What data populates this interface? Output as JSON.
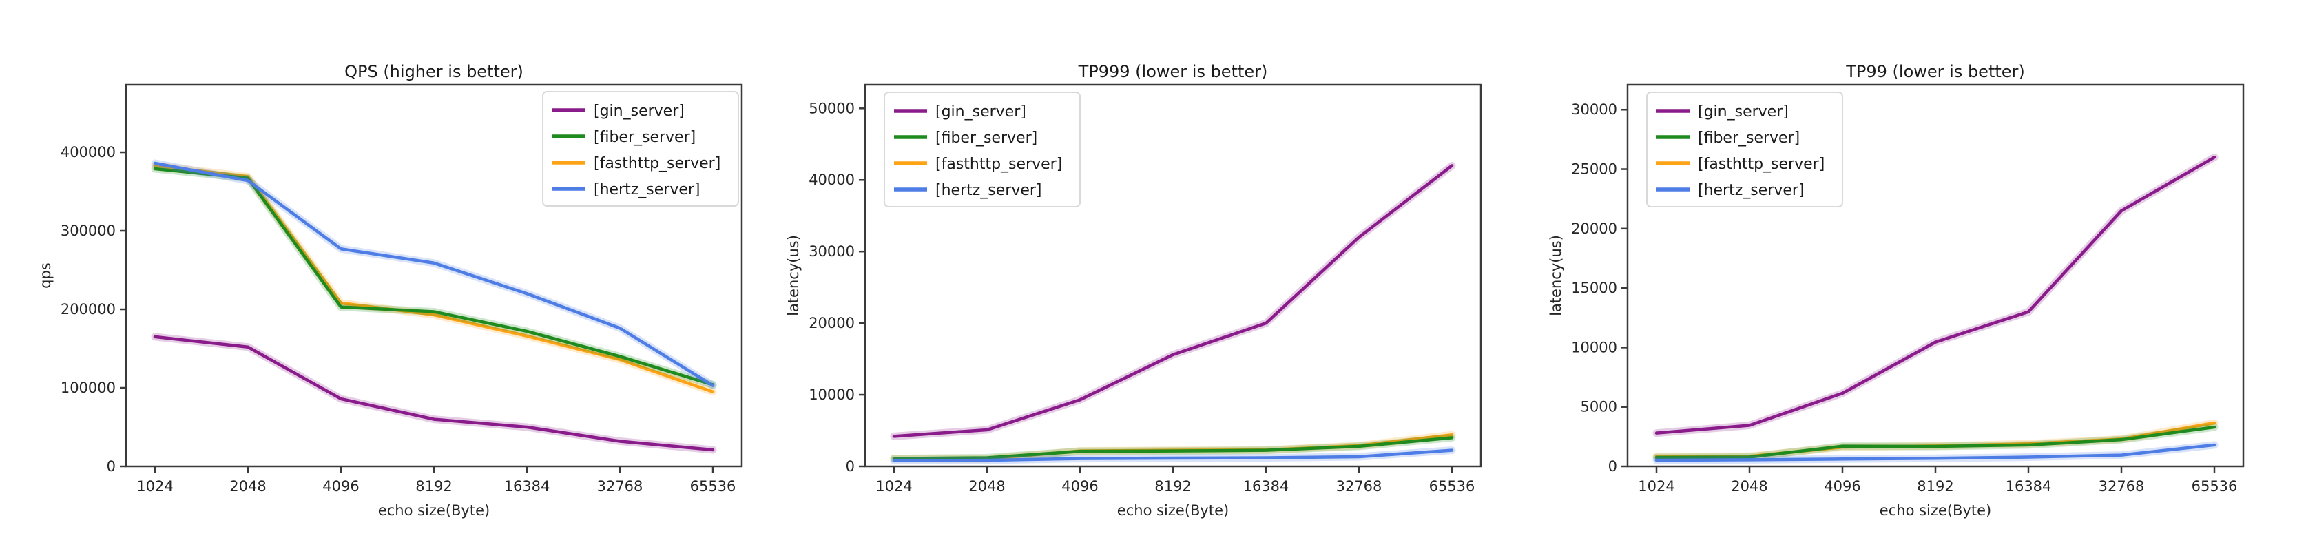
{
  "figure": {
    "background": "#ffffff",
    "text_color": "#1a1a1a",
    "spine_color": "#3a3a3a",
    "legend_border": "#d9d9d9",
    "legend_fill": "#ffffff"
  },
  "chart_data": [
    {
      "type": "line",
      "title": "QPS (higher is better)",
      "xlabel": "echo size(Byte)",
      "ylabel": "qps",
      "legend_position": "top-right",
      "grid": false,
      "categories": [
        "1024",
        "2048",
        "4096",
        "8192",
        "16384",
        "32768",
        "65536"
      ],
      "yticks": [
        0,
        100000,
        200000,
        300000,
        400000
      ],
      "ytick_labels": [
        "0",
        "100000",
        "200000",
        "300000",
        "400000"
      ],
      "ylim": [
        0,
        486000
      ],
      "series": [
        {
          "name": "[gin_server]",
          "color": "#8a1b8a",
          "values": [
            165000,
            152000,
            86000,
            60000,
            50000,
            32000,
            21000
          ]
        },
        {
          "name": "[fiber_server]",
          "color": "#1f8b1f",
          "values": [
            379000,
            367000,
            203000,
            197000,
            172000,
            140000,
            104000
          ]
        },
        {
          "name": "[fasthttp_server]",
          "color": "#ffa316",
          "values": [
            383000,
            369000,
            208000,
            193000,
            166000,
            136000,
            95000
          ]
        },
        {
          "name": "[hertz_server]",
          "color": "#4d7de5",
          "values": [
            386000,
            364000,
            277000,
            259000,
            220000,
            176000,
            103000
          ]
        }
      ]
    },
    {
      "type": "line",
      "title": "TP999 (lower is better)",
      "xlabel": "echo size(Byte)",
      "ylabel": "latency(us)",
      "legend_position": "top-left",
      "grid": false,
      "categories": [
        "1024",
        "2048",
        "4096",
        "8192",
        "16384",
        "32768",
        "65536"
      ],
      "yticks": [
        0,
        10000,
        20000,
        30000,
        40000,
        50000
      ],
      "ytick_labels": [
        "0",
        "10000",
        "20000",
        "30000",
        "40000",
        "50000"
      ],
      "ylim": [
        0,
        53300
      ],
      "series": [
        {
          "name": "[gin_server]",
          "color": "#8a1b8a",
          "values": [
            4200,
            5100,
            9300,
            15600,
            20000,
            32000,
            42000
          ]
        },
        {
          "name": "[fiber_server]",
          "color": "#1f8b1f",
          "values": [
            1100,
            1200,
            2100,
            2150,
            2250,
            2800,
            4000
          ]
        },
        {
          "name": "[fasthttp_server]",
          "color": "#ffa316",
          "values": [
            1100,
            1050,
            2150,
            2250,
            2300,
            2900,
            4400
          ]
        },
        {
          "name": "[hertz_server]",
          "color": "#4d7de5",
          "values": [
            800,
            850,
            1100,
            1150,
            1200,
            1350,
            2250
          ]
        }
      ]
    },
    {
      "type": "line",
      "title": "TP99 (lower is better)",
      "xlabel": "echo size(Byte)",
      "ylabel": "latency(us)",
      "legend_position": "top-left",
      "grid": false,
      "categories": [
        "1024",
        "2048",
        "4096",
        "8192",
        "16384",
        "32768",
        "65536"
      ],
      "yticks": [
        0,
        5000,
        10000,
        15000,
        20000,
        25000,
        30000
      ],
      "ytick_labels": [
        "0",
        "5000",
        "10000",
        "15000",
        "20000",
        "25000",
        "30000"
      ],
      "ylim": [
        0,
        32100
      ],
      "series": [
        {
          "name": "[gin_server]",
          "color": "#8a1b8a",
          "values": [
            2800,
            3450,
            6150,
            10450,
            13000,
            21500,
            26000
          ]
        },
        {
          "name": "[fiber_server]",
          "color": "#1f8b1f",
          "values": [
            750,
            780,
            1700,
            1680,
            1800,
            2250,
            3300
          ]
        },
        {
          "name": "[fasthttp_server]",
          "color": "#ffa316",
          "values": [
            850,
            850,
            1620,
            1720,
            1900,
            2300,
            3650
          ]
        },
        {
          "name": "[hertz_server]",
          "color": "#4d7de5",
          "values": [
            520,
            560,
            620,
            680,
            780,
            950,
            1800
          ]
        }
      ]
    }
  ]
}
